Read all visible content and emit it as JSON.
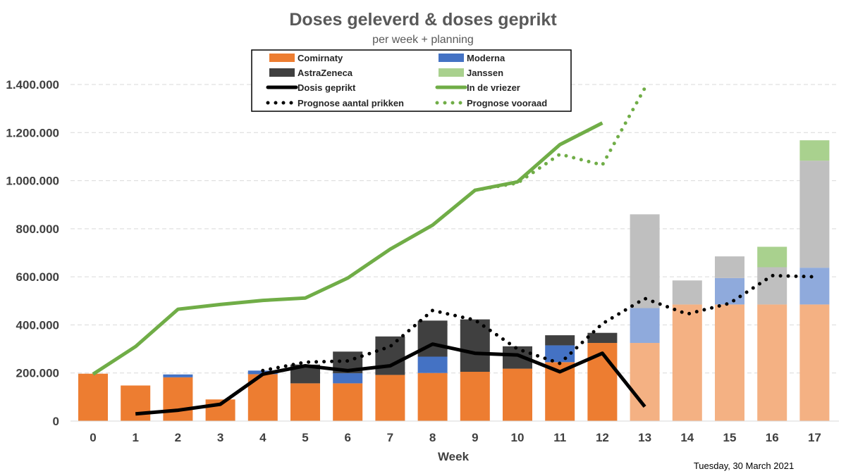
{
  "chart_data": {
    "type": "bar",
    "title": "Doses geleverd  &  doses geprikt",
    "subtitle": "per week + planning",
    "xlabel": "Week",
    "ylabel": "",
    "ylim": [
      0,
      1400000
    ],
    "yticks": [
      0,
      200000,
      400000,
      600000,
      800000,
      1000000,
      1200000,
      1400000
    ],
    "ytick_labels": [
      "0",
      "200.000",
      "400.000",
      "600.000",
      "800.000",
      "1.000.000",
      "1.200.000",
      "1.400.000"
    ],
    "categories": [
      "0",
      "1",
      "2",
      "3",
      "4",
      "5",
      "6",
      "7",
      "8",
      "9",
      "10",
      "11",
      "12",
      "13",
      "14",
      "15",
      "16",
      "17"
    ],
    "planned_from_index": 13,
    "grid": true,
    "legend_position": "top-center",
    "stack_series": [
      {
        "name": "Comirnaty",
        "color": "#ED7D31",
        "planned_color": "#F4B183",
        "values": [
          197000,
          148000,
          182000,
          90000,
          195000,
          157000,
          157000,
          192000,
          200000,
          205000,
          218000,
          245000,
          325000,
          325000,
          485000,
          485000,
          485000,
          485000
        ]
      },
      {
        "name": "Moderna",
        "color": "#4472C4",
        "planned_color": "#8FAADC",
        "values": [
          0,
          0,
          12000,
          0,
          15000,
          0,
          42000,
          0,
          68000,
          0,
          0,
          70000,
          0,
          145000,
          0,
          110000,
          0,
          153000
        ]
      },
      {
        "name": "AstraZeneca",
        "color": "#404040",
        "planned_color": "#BFBFBF",
        "values": [
          0,
          0,
          0,
          0,
          0,
          78000,
          90000,
          160000,
          150000,
          218000,
          93000,
          42000,
          42000,
          390000,
          100000,
          90000,
          155000,
          445000
        ]
      },
      {
        "name": "Janssen",
        "color": "#A9D18E",
        "planned_color": "#A9D18E",
        "values": [
          0,
          0,
          0,
          0,
          0,
          0,
          0,
          0,
          0,
          0,
          0,
          0,
          0,
          0,
          0,
          0,
          85000,
          85000
        ]
      }
    ],
    "line_series": [
      {
        "name": "Dosis geprikt",
        "color": "#000000",
        "style": "solid",
        "x": [
          1,
          2,
          3,
          4,
          5,
          6,
          7,
          8,
          9,
          10,
          11,
          12,
          13
        ],
        "values": [
          30000,
          45000,
          70000,
          195000,
          230000,
          210000,
          230000,
          320000,
          282000,
          275000,
          205000,
          282000,
          60000
        ]
      },
      {
        "name": "In de vriezer",
        "color": "#70AD47",
        "style": "solid",
        "x": [
          0,
          1,
          2,
          3,
          4,
          5,
          6,
          7,
          8,
          9,
          10,
          11,
          12
        ],
        "values": [
          195000,
          310000,
          465000,
          485000,
          502000,
          512000,
          595000,
          715000,
          815000,
          960000,
          995000,
          1150000,
          1240000
        ]
      },
      {
        "name": "Prognose aantal prikken",
        "color": "#000000",
        "style": "dotted",
        "x": [
          4,
          5,
          6,
          7,
          8,
          9,
          10,
          11,
          12,
          13,
          14,
          15,
          16,
          17
        ],
        "values": [
          210000,
          245000,
          250000,
          310000,
          460000,
          420000,
          300000,
          240000,
          405000,
          510000,
          445000,
          490000,
          605000,
          600000
        ]
      },
      {
        "name": "Prognose vooraad",
        "color": "#70AD47",
        "style": "dotted",
        "x": [
          9,
          10,
          11,
          12,
          13
        ],
        "values": [
          960000,
          990000,
          1110000,
          1065000,
          1385000
        ]
      }
    ],
    "legend": [
      {
        "name": "Comirnaty",
        "kind": "rect",
        "color": "#ED7D31"
      },
      {
        "name": "Moderna",
        "kind": "rect",
        "color": "#4472C4"
      },
      {
        "name": "AstraZeneca",
        "kind": "rect",
        "color": "#404040"
      },
      {
        "name": "Janssen",
        "kind": "rect",
        "color": "#A9D18E"
      },
      {
        "name": "Dosis geprikt",
        "kind": "line",
        "color": "#000000"
      },
      {
        "name": "In de vriezer",
        "kind": "line",
        "color": "#70AD47"
      },
      {
        "name": "Prognose aantal prikken",
        "kind": "dots",
        "color": "#000000"
      },
      {
        "name": "Prognose vooraad",
        "kind": "dots",
        "color": "#70AD47"
      }
    ]
  },
  "date_label": "Tuesday, 30 March 2021"
}
